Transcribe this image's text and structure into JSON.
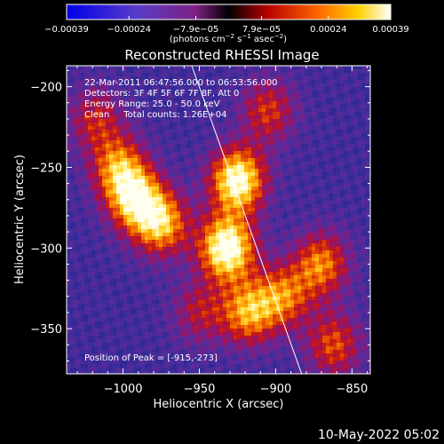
{
  "chart_data": {
    "type": "heatmap",
    "title": "Reconstructed RHESSI Image",
    "xlabel": "Heliocentric X (arcsec)",
    "ylabel": "Heliocentric Y (arcsec)",
    "xlim": [
      -1037,
      -838
    ],
    "ylim": [
      -378,
      -187
    ],
    "xticks": [
      -1000,
      -950,
      -900,
      -850
    ],
    "xtick_labels": [
      "−1000",
      "−950",
      "−900",
      "−850"
    ],
    "yticks": [
      -200,
      -250,
      -300,
      -350
    ],
    "ytick_labels": [
      "−200",
      "−250",
      "−300",
      "−350"
    ],
    "colorbar": {
      "range": [
        -0.00039,
        0.00039
      ],
      "tick_values": [
        -0.00039,
        -0.00024,
        -7.9e-05,
        7.9e-05,
        0.00024,
        0.00039
      ],
      "tick_labels": [
        "−0.00039",
        "−0.00024",
        "−7.9e−05",
        "7.9e−05",
        "0.00024",
        "0.00039"
      ],
      "units_main": "(photons cm",
      "units_sup1": "−2",
      "units_mid1": " s",
      "units_sup2": "−1",
      "units_mid2": " asec",
      "units_sup3": "−2",
      "units_end": ")"
    },
    "annotations": {
      "time_range": "22-Mar-2011 06:47:56.000 to 06:53:56.000",
      "detectors": "Detectors: 3F 4F 5F 6F 7F 8F, Att 0",
      "energy_range": "Energy Range: 25.0 - 50.0 keV",
      "method_counts": "Clean     Total counts: 1.26E+04",
      "peak": "Position of Peak = [-915,-273]"
    },
    "peak": [
      -915,
      -273
    ],
    "sources": [
      {
        "x": -1003,
        "y": -250,
        "intensity": 0.6
      },
      {
        "x": -992,
        "y": -270,
        "intensity": 0.75
      },
      {
        "x": -975,
        "y": -285,
        "intensity": 0.7
      },
      {
        "x": -1018,
        "y": -220,
        "intensity": 0.4
      },
      {
        "x": -925,
        "y": -258,
        "intensity": 0.95
      },
      {
        "x": -932,
        "y": -300,
        "intensity": 1.0
      },
      {
        "x": -918,
        "y": -340,
        "intensity": 0.65
      },
      {
        "x": -895,
        "y": -330,
        "intensity": 0.55
      },
      {
        "x": -870,
        "y": -310,
        "intensity": 0.6
      },
      {
        "x": -862,
        "y": -360,
        "intensity": 0.5
      },
      {
        "x": -905,
        "y": -215,
        "intensity": 0.45
      },
      {
        "x": -950,
        "y": -340,
        "intensity": 0.35
      }
    ],
    "limb_line": [
      [
        -955,
        -187
      ],
      [
        -883,
        -378
      ]
    ],
    "footer_timestamp": "10-May-2022 05:02"
  }
}
